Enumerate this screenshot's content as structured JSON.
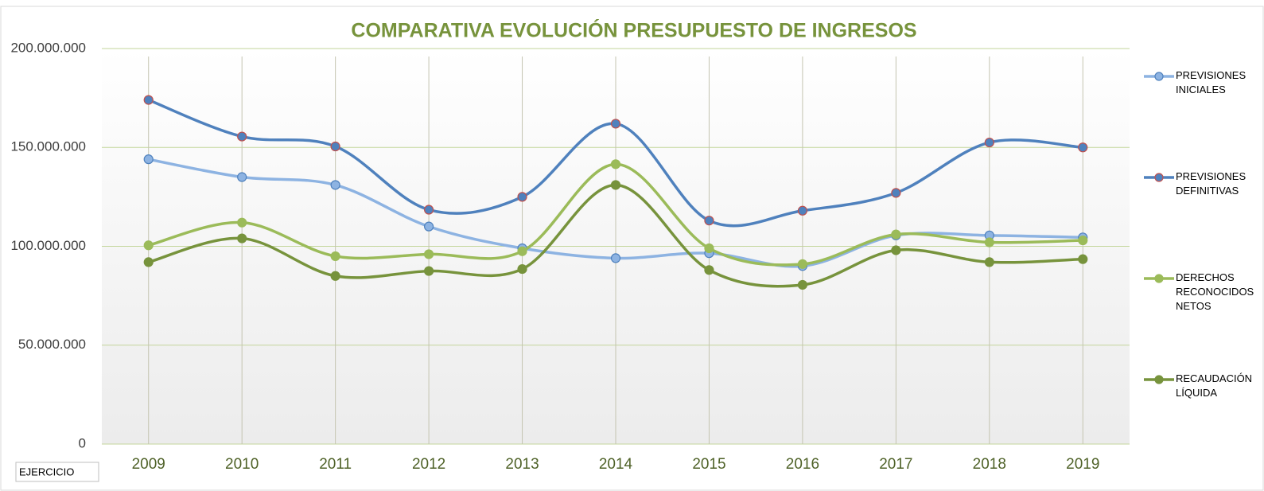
{
  "chart_data": {
    "type": "line",
    "title": "COMPARATIVA EVOLUCIÓN PRESUPUESTO DE INGRESOS",
    "x_label": "EJERCICIO",
    "categories": [
      "2009",
      "2010",
      "2011",
      "2012",
      "2013",
      "2014",
      "2015",
      "2016",
      "2017",
      "2018",
      "2019"
    ],
    "series": [
      {
        "name": "PREVISIONES INICIALES",
        "color": "#8db3e2",
        "edge": "#4f81bd",
        "values": [
          144000000,
          135000000,
          131000000,
          110000000,
          99000000,
          94000000,
          96500000,
          90000000,
          105500000,
          105500000,
          104500000
        ]
      },
      {
        "name": "PREVISIONES DEFINITIVAS",
        "color": "#4f81bd",
        "edge": "#c0504d",
        "values": [
          174000000,
          155500000,
          150500000,
          118500000,
          125000000,
          162000000,
          113000000,
          118000000,
          127000000,
          152500000,
          150000000
        ]
      },
      {
        "name": "DERECHOS RECONOCIDOS NETOS",
        "color": "#9bbb59",
        "edge": "#9bbb59",
        "values": [
          100500000,
          112000000,
          95000000,
          96000000,
          97500000,
          141500000,
          99000000,
          91000000,
          106000000,
          102000000,
          103000000
        ]
      },
      {
        "name": "RECAUDACIÓN LÍQUIDA",
        "color": "#77933c",
        "edge": "#77933c",
        "values": [
          92000000,
          104000000,
          85000000,
          87500000,
          88500000,
          131000000,
          88000000,
          80500000,
          98000000,
          92000000,
          93500000
        ]
      }
    ],
    "ylim": [
      0,
      200000000
    ],
    "yticks": [
      0,
      {
        "value": 50000000,
        "label": "50.000.000"
      },
      {
        "value": 100000000,
        "label": "100.000.000"
      },
      {
        "value": 150000000,
        "label": "150.000.000"
      },
      {
        "value": 200000000,
        "label": "200.000.000"
      }
    ],
    "grid": true,
    "legend": "right",
    "smooth": true
  }
}
